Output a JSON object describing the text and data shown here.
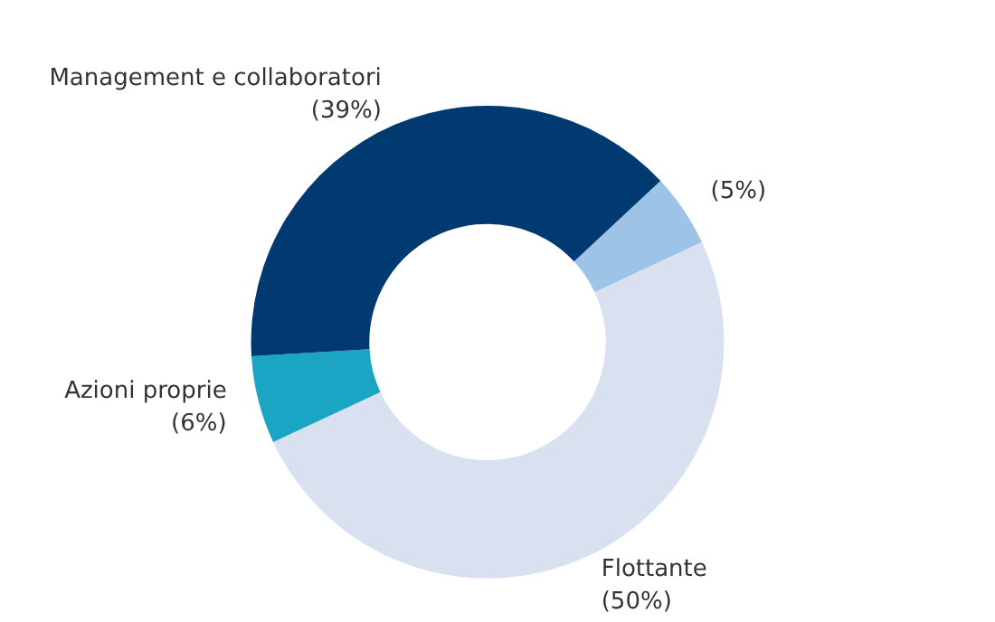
{
  "chart_data": {
    "type": "donut",
    "categories": [
      null,
      "Flottante",
      "Azioni proprie",
      "Management e collaboratori"
    ],
    "values": [
      5,
      50,
      6,
      39
    ],
    "value_labels": [
      "(5%)",
      "(50%)",
      "(6%)",
      "(39%)"
    ],
    "colors": [
      "#9dc3e6",
      "#d9e1f0",
      "#1aa5c4",
      "#003a70"
    ],
    "legend": false
  }
}
